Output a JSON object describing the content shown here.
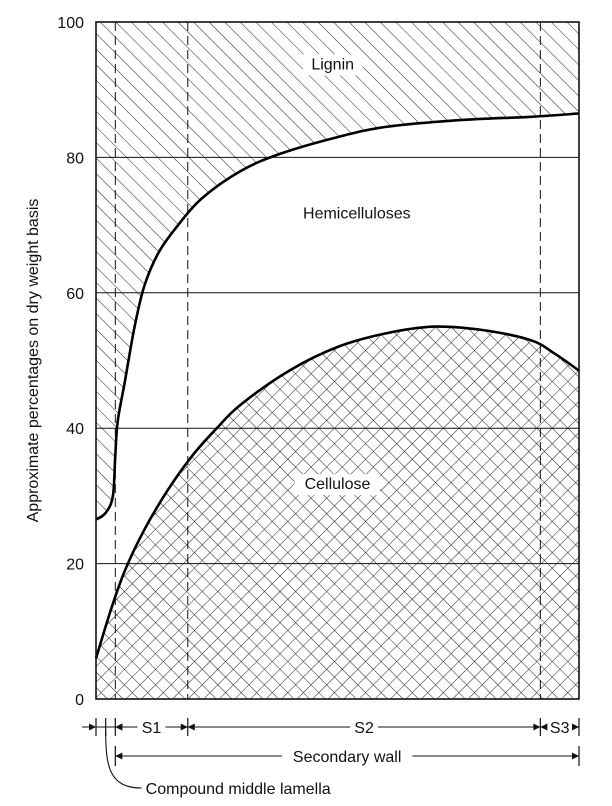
{
  "chart_data": {
    "type": "area",
    "ylabel": "Approximate percentages on dry weight basis",
    "xlabel": "",
    "ylim": [
      0,
      100
    ],
    "yticks": [
      0,
      20,
      40,
      60,
      80,
      100
    ],
    "grid": true,
    "x_domain": [
      0,
      100
    ],
    "boundaries": [
      {
        "name": "cellulose_top",
        "points": [
          [
            0,
            6
          ],
          [
            3,
            13
          ],
          [
            6,
            19
          ],
          [
            10,
            25
          ],
          [
            15,
            31
          ],
          [
            20,
            36
          ],
          [
            25,
            40
          ],
          [
            30,
            43.5
          ],
          [
            40,
            48.5
          ],
          [
            50,
            52
          ],
          [
            60,
            54
          ],
          [
            70,
            55
          ],
          [
            80,
            54.5
          ],
          [
            90,
            53
          ],
          [
            95,
            51
          ],
          [
            100,
            48.5
          ]
        ]
      },
      {
        "name": "hemicellulose_top",
        "points": [
          [
            0,
            26.5
          ],
          [
            2,
            27.5
          ],
          [
            3.5,
            30
          ],
          [
            4,
            36
          ],
          [
            4.5,
            41
          ],
          [
            6,
            47
          ],
          [
            8,
            55
          ],
          [
            10,
            61
          ],
          [
            13,
            66
          ],
          [
            17,
            70
          ],
          [
            22,
            74
          ],
          [
            30,
            78
          ],
          [
            38,
            80.5
          ],
          [
            50,
            83
          ],
          [
            60,
            84.5
          ],
          [
            75,
            85.5
          ],
          [
            90,
            86
          ],
          [
            100,
            86.5
          ]
        ]
      }
    ],
    "regions": [
      {
        "label": "Lignin",
        "label_pos": [
          49,
          93
        ]
      },
      {
        "label": "Hemicelluloses",
        "label_pos": [
          54,
          71
        ]
      },
      {
        "label": "Cellulose",
        "label_pos": [
          50,
          31
        ]
      }
    ],
    "layers": [
      {
        "label": "",
        "x0": 0,
        "x1": 4
      },
      {
        "label": "S1",
        "x0": 4,
        "x1": 19
      },
      {
        "label": "S2",
        "x0": 19,
        "x1": 92
      },
      {
        "label": "S3",
        "x0": 92,
        "x1": 100
      }
    ],
    "divider_x": [
      4,
      19,
      92
    ],
    "secondary_wall": {
      "label": "Secondary wall",
      "x0": 4,
      "x1": 100
    },
    "middle_lamella": {
      "label": "Compound middle lamella",
      "x": 2
    }
  }
}
